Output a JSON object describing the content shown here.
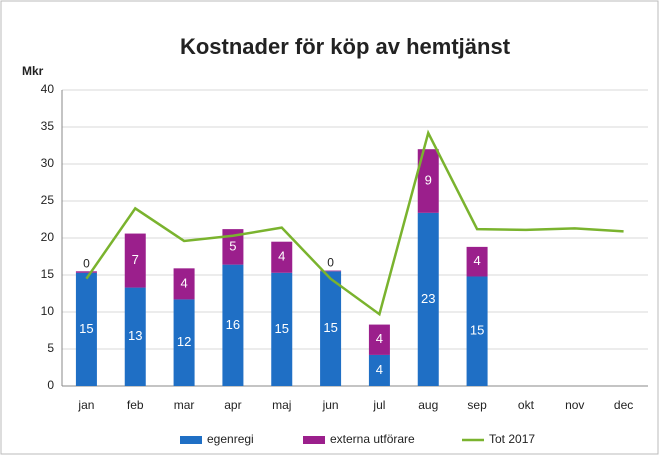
{
  "chart_data": {
    "type": "bar",
    "stacked": true,
    "title": "Kostnader för köp av hemtjänst",
    "y_label": "Mkr",
    "categories": [
      "jan",
      "feb",
      "mar",
      "apr",
      "maj",
      "jun",
      "jul",
      "aug",
      "sep",
      "okt",
      "nov",
      "dec"
    ],
    "series": [
      {
        "name": "egenregi",
        "color": "#1f6fc5",
        "values": [
          15.3,
          13.3,
          11.7,
          16.4,
          15.3,
          15.5,
          4.2,
          23.4,
          14.8,
          null,
          null,
          null
        ],
        "value_labels": [
          "15",
          "13",
          "12",
          "16",
          "15",
          "15",
          "4",
          "23",
          "15",
          null,
          null,
          null
        ]
      },
      {
        "name": "externa utförare",
        "color": "#9b1f8c",
        "values": [
          0.2,
          7.3,
          4.2,
          4.8,
          4.2,
          0.1,
          4.1,
          8.6,
          4.0,
          null,
          null,
          null
        ],
        "value_labels": [
          "0",
          "7",
          "4",
          "5",
          "4",
          "0",
          "4",
          "9",
          "4",
          null,
          null,
          null
        ]
      },
      {
        "name": "Tot 2017",
        "color": "#7ab32e",
        "type": "line",
        "values": [
          14.5,
          24.0,
          19.6,
          20.3,
          21.4,
          14.5,
          9.7,
          34.2,
          21.2,
          21.1,
          21.3,
          20.9
        ]
      }
    ],
    "ylim": [
      0,
      40
    ],
    "yticks": [
      0,
      5,
      10,
      15,
      20,
      25,
      30,
      35,
      40
    ],
    "grid": true,
    "legend": "bottom"
  }
}
